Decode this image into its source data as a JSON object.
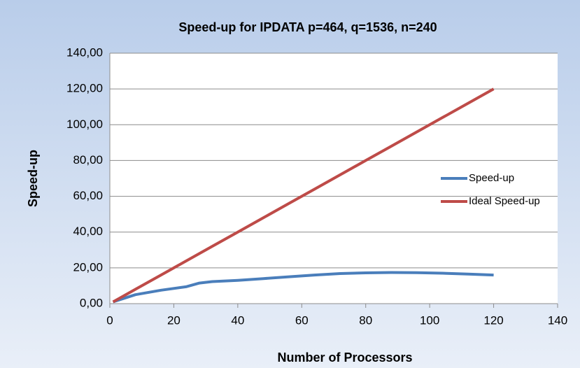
{
  "chart_data": {
    "type": "line",
    "title": "Speed-up for IPDATA p=464, q=1536, n=240",
    "x_label": "Number of Processors",
    "y_label": "Speed-up",
    "x": [
      1,
      8,
      16,
      24,
      28,
      32,
      40,
      48,
      56,
      64,
      72,
      80,
      88,
      96,
      104,
      112,
      120
    ],
    "series": [
      {
        "name": "Speed-up",
        "color": "#4a7ebb",
        "values": [
          1,
          5,
          7.5,
          9.5,
          11.5,
          12.3,
          13,
          14,
          15,
          16,
          16.8,
          17.2,
          17.4,
          17.3,
          17,
          16.5,
          16
        ]
      },
      {
        "name": "Ideal Speed-up",
        "color": "#be4b48",
        "values": [
          1,
          8,
          16,
          24,
          28,
          32,
          40,
          48,
          56,
          64,
          72,
          80,
          88,
          96,
          104,
          112,
          120
        ]
      }
    ],
    "xlim": [
      0,
      140
    ],
    "xticks": [
      0,
      20,
      40,
      60,
      80,
      100,
      120,
      140
    ],
    "ylim": [
      0,
      140
    ],
    "yticks": [
      {
        "value": 0,
        "label": "0,00"
      },
      {
        "value": 20,
        "label": "20,00"
      },
      {
        "value": 40,
        "label": "40,00"
      },
      {
        "value": 60,
        "label": "60,00"
      },
      {
        "value": 80,
        "label": "80,00"
      },
      {
        "value": 100,
        "label": "100,00"
      },
      {
        "value": 120,
        "label": "120,00"
      },
      {
        "value": 140,
        "label": "140,00"
      }
    ],
    "grid": true,
    "legend": "right"
  }
}
